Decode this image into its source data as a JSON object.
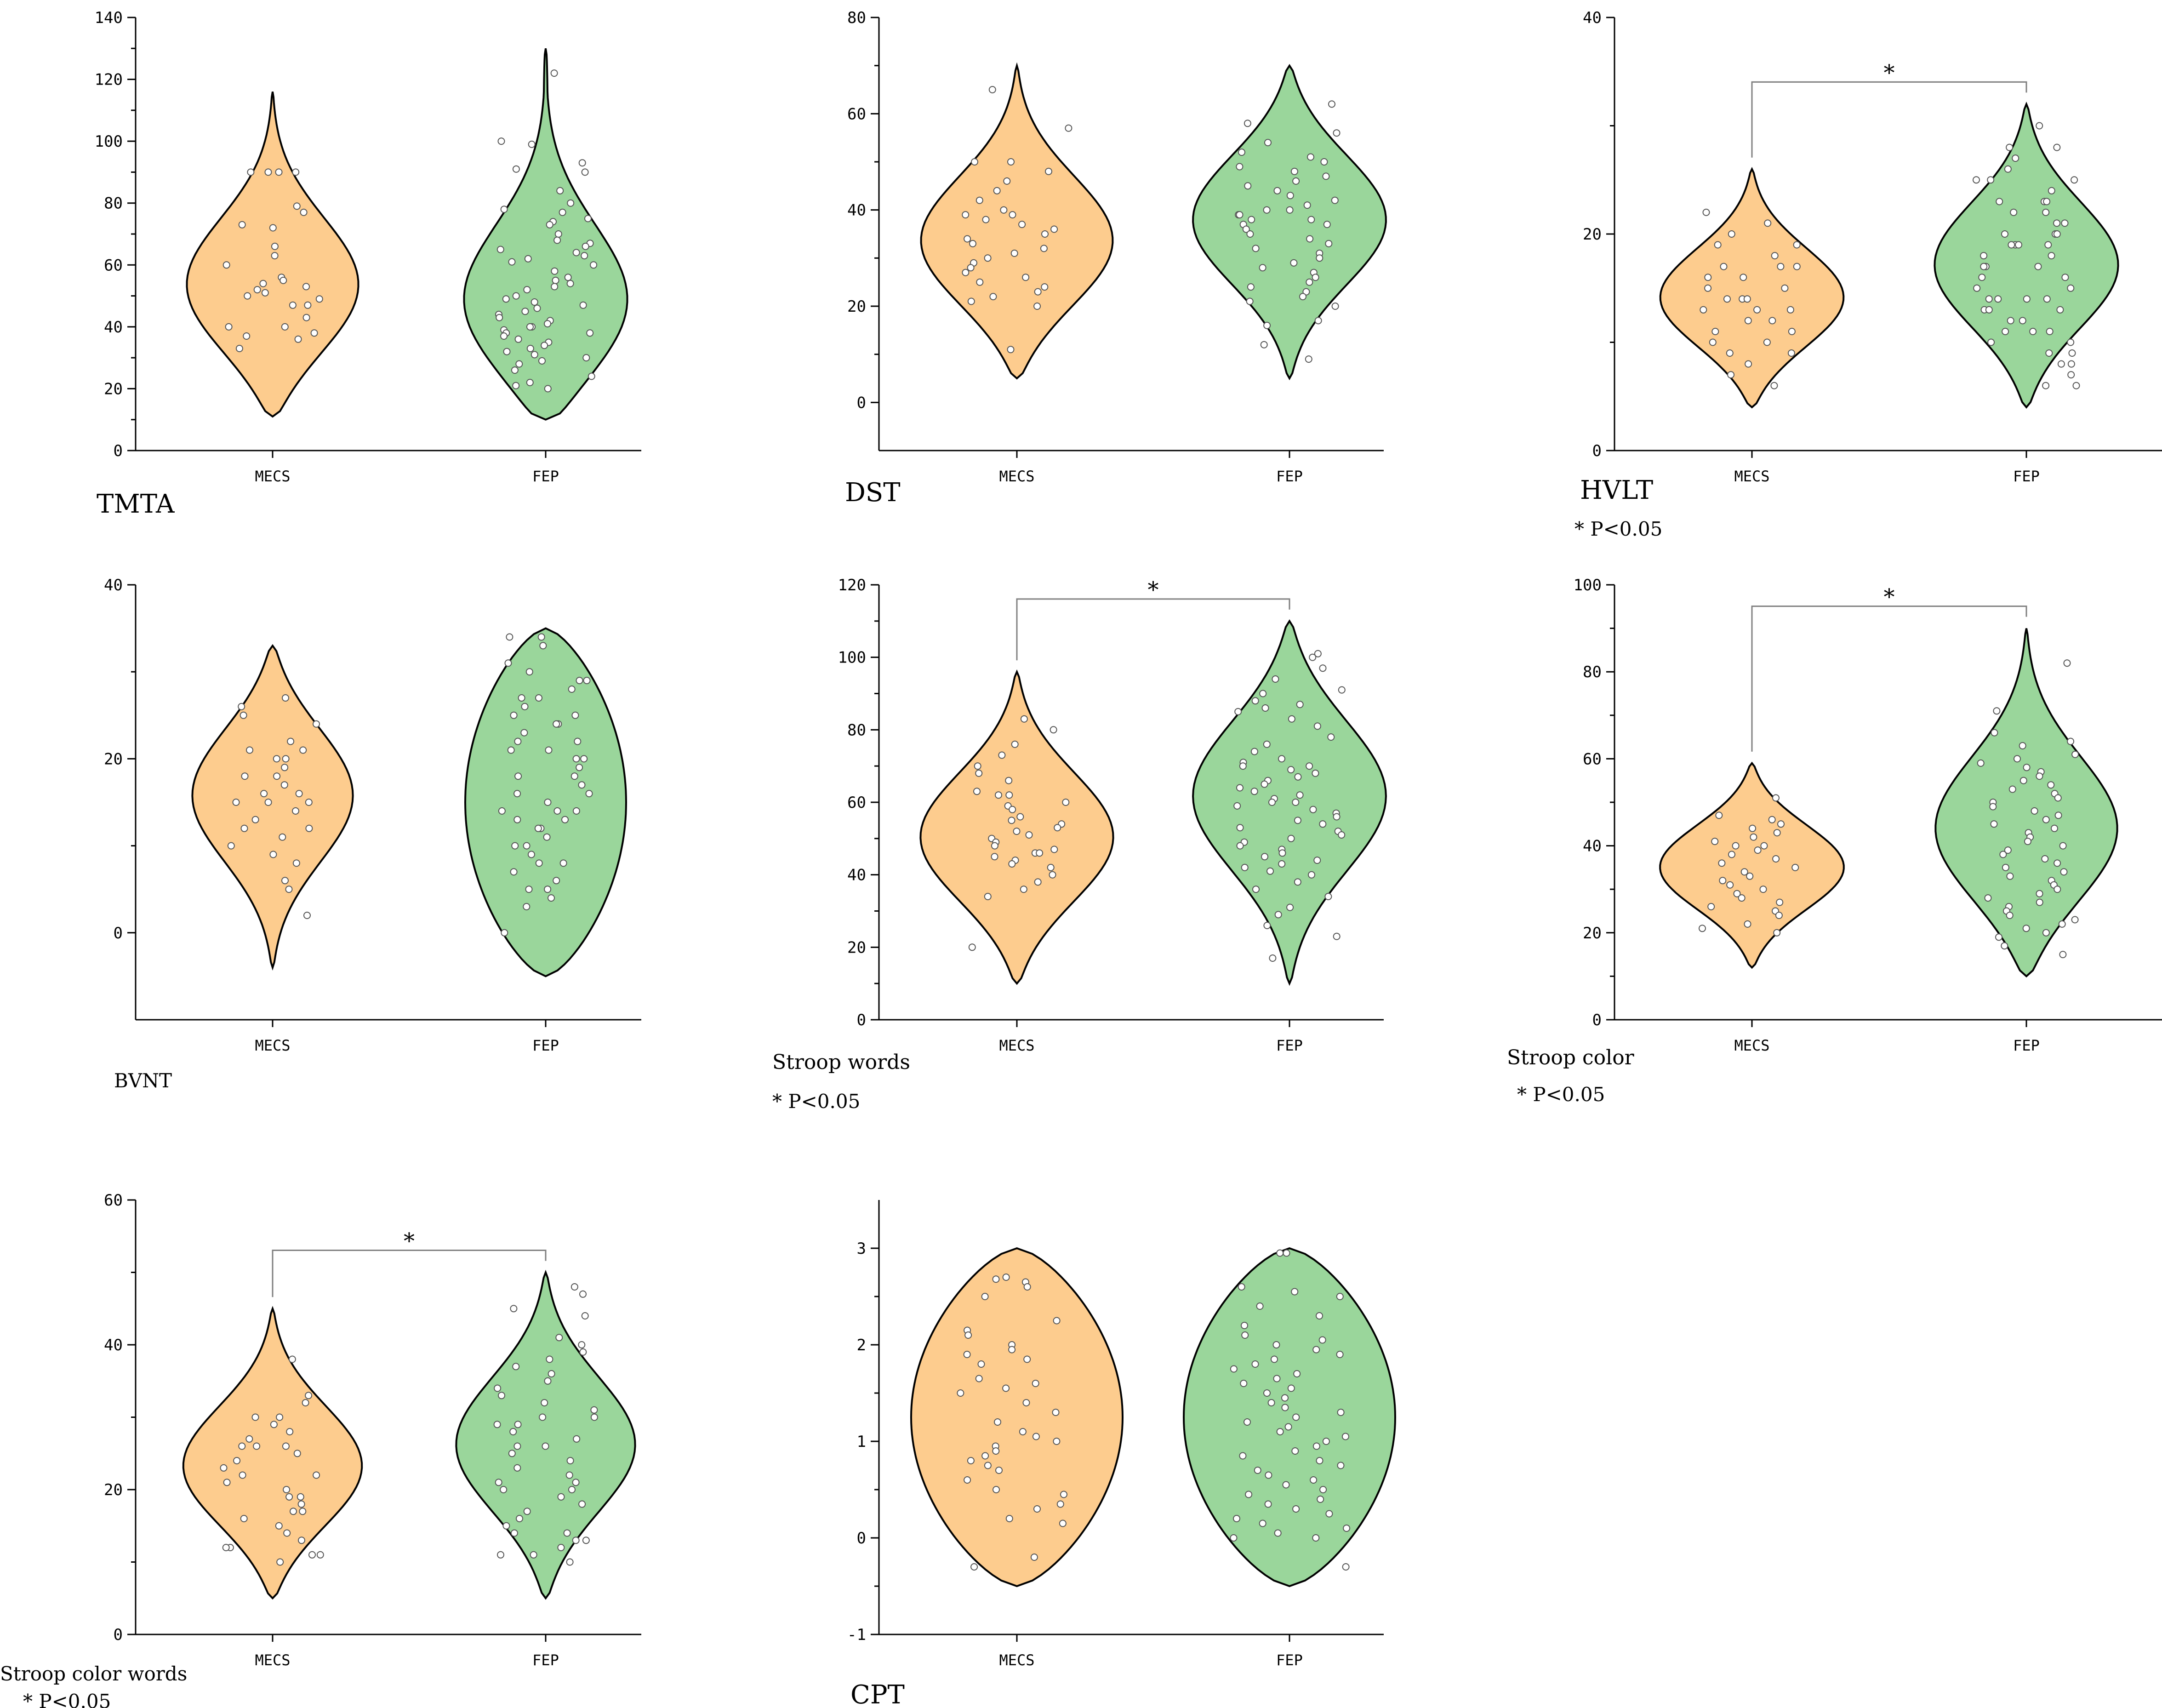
{
  "colors": {
    "mecs": "#FDCC8E",
    "fep": "#9AD69B",
    "outline": "#000000",
    "bracket": "#808080",
    "point_fill": "#ffffff"
  },
  "chart_data": [
    {
      "type": "violin",
      "title": "TMTA",
      "note": "",
      "categories": [
        "MECS",
        "FEP"
      ],
      "ylim": [
        0,
        140
      ],
      "yticks": [
        0,
        20,
        40,
        60,
        80,
        100,
        120,
        140
      ],
      "significant": false,
      "bracket_label": "",
      "series": [
        {
          "category": "MECS",
          "range": [
            11,
            116
          ],
          "median": 52,
          "points": [
            73,
            90,
            90,
            90,
            90,
            77,
            79,
            72,
            66,
            63,
            60,
            56,
            55,
            54,
            53,
            52,
            51,
            50,
            49,
            47,
            47,
            43,
            40,
            40,
            38,
            37,
            36,
            33
          ]
        },
        {
          "category": "FEP",
          "range": [
            10,
            130
          ],
          "median": 45,
          "points": [
            122,
            100,
            99,
            93,
            91,
            90,
            84,
            80,
            78,
            77,
            75,
            74,
            73,
            70,
            68,
            67,
            66,
            65,
            64,
            63,
            62,
            61,
            60,
            58,
            56,
            55,
            54,
            53,
            52,
            50,
            49,
            48,
            47,
            46,
            45,
            44,
            43,
            42,
            41,
            40,
            40,
            39,
            38,
            38,
            37,
            36,
            35,
            34,
            33,
            32,
            31,
            30,
            29,
            28,
            26,
            24,
            22,
            21,
            20
          ]
        }
      ]
    },
    {
      "type": "violin",
      "title": "DST",
      "note": "",
      "categories": [
        "MECS",
        "FEP"
      ],
      "ylim": [
        -10,
        80
      ],
      "yticks": [
        0,
        20,
        40,
        60,
        80
      ],
      "significant": false,
      "bracket_label": "",
      "series": [
        {
          "category": "MECS",
          "range": [
            5,
            70
          ],
          "median": 33,
          "points": [
            65,
            57,
            50,
            50,
            48,
            46,
            44,
            42,
            40,
            39,
            39,
            38,
            37,
            36,
            35,
            34,
            33,
            32,
            31,
            30,
            29,
            28,
            27,
            26,
            25,
            24,
            23,
            22,
            21,
            20,
            11
          ]
        },
        {
          "category": "FEP",
          "range": [
            5,
            70
          ],
          "median": 38,
          "points": [
            62,
            58,
            56,
            54,
            52,
            51,
            50,
            49,
            48,
            47,
            46,
            45,
            44,
            43,
            42,
            41,
            40,
            40,
            39,
            39,
            38,
            38,
            37,
            37,
            36,
            35,
            34,
            33,
            32,
            31,
            30,
            29,
            28,
            27,
            26,
            25,
            24,
            23,
            22,
            21,
            20,
            17,
            16,
            12,
            9
          ]
        }
      ]
    },
    {
      "type": "violin",
      "title": "HVLT",
      "note": "* P<0.05",
      "categories": [
        "MECS",
        "FEP"
      ],
      "ylim": [
        0,
        40
      ],
      "yticks": [
        0,
        20,
        40
      ],
      "significant": true,
      "bracket_label": "*",
      "series": [
        {
          "category": "MECS",
          "range": [
            4,
            26
          ],
          "median": 14,
          "points": [
            22,
            21,
            20,
            19,
            19,
            18,
            17,
            17,
            17,
            16,
            16,
            15,
            15,
            14,
            14,
            14,
            13,
            13,
            13,
            12,
            12,
            11,
            11,
            10,
            10,
            9,
            9,
            8,
            7,
            6
          ]
        },
        {
          "category": "FEP",
          "range": [
            4,
            32
          ],
          "median": 17,
          "points": [
            30,
            28,
            28,
            27,
            26,
            25,
            25,
            25,
            24,
            23,
            23,
            23,
            22,
            22,
            21,
            21,
            20,
            20,
            20,
            19,
            19,
            19,
            19,
            18,
            18,
            17,
            17,
            17,
            16,
            16,
            15,
            15,
            14,
            14,
            14,
            14,
            13,
            13,
            13,
            12,
            12,
            11,
            11,
            11,
            10,
            10,
            9,
            9,
            8,
            8,
            7,
            6,
            6
          ]
        }
      ]
    },
    {
      "type": "violin",
      "title": "BVNT",
      "note": "",
      "categories": [
        "MECS",
        "FEP"
      ],
      "ylim": [
        -10,
        40
      ],
      "yticks": [
        0,
        20,
        40
      ],
      "significant": false,
      "bracket_label": "",
      "series": [
        {
          "category": "MECS",
          "range": [
            -4,
            33
          ],
          "median": 16,
          "points": [
            27,
            26,
            25,
            24,
            22,
            21,
            21,
            20,
            20,
            19,
            18,
            18,
            17,
            16,
            16,
            15,
            15,
            15,
            14,
            13,
            12,
            12,
            11,
            10,
            9,
            8,
            6,
            5,
            2
          ]
        },
        {
          "category": "FEP",
          "range": [
            -5,
            35
          ],
          "median": 16,
          "points": [
            34,
            34,
            33,
            31,
            30,
            29,
            29,
            28,
            27,
            27,
            26,
            25,
            25,
            24,
            24,
            23,
            22,
            22,
            21,
            21,
            20,
            20,
            19,
            18,
            18,
            17,
            16,
            16,
            15,
            14,
            14,
            14,
            13,
            13,
            12,
            12,
            11,
            10,
            10,
            9,
            8,
            8,
            7,
            6,
            5,
            5,
            4,
            3,
            0
          ]
        }
      ]
    },
    {
      "type": "violin",
      "title": "Stroop words",
      "note": "* P<0.05",
      "categories": [
        "MECS",
        "FEP"
      ],
      "ylim": [
        0,
        120
      ],
      "yticks": [
        0,
        20,
        40,
        60,
        80,
        100,
        120
      ],
      "significant": true,
      "bracket_label": "*",
      "series": [
        {
          "category": "MECS",
          "range": [
            10,
            96
          ],
          "median": 50,
          "points": [
            83,
            80,
            76,
            73,
            70,
            68,
            66,
            63,
            62,
            62,
            60,
            59,
            58,
            56,
            55,
            54,
            53,
            52,
            51,
            50,
            49,
            48,
            47,
            46,
            46,
            45,
            44,
            43,
            42,
            40,
            38,
            36,
            34,
            20
          ]
        },
        {
          "category": "FEP",
          "range": [
            10,
            110
          ],
          "median": 62,
          "points": [
            101,
            100,
            97,
            94,
            91,
            90,
            88,
            87,
            86,
            85,
            83,
            81,
            78,
            76,
            74,
            72,
            71,
            70,
            70,
            69,
            68,
            67,
            66,
            65,
            64,
            63,
            62,
            61,
            60,
            60,
            59,
            58,
            57,
            56,
            55,
            54,
            53,
            52,
            51,
            50,
            49,
            48,
            47,
            46,
            45,
            44,
            43,
            42,
            41,
            40,
            38,
            36,
            34,
            31,
            29,
            26,
            23,
            17
          ]
        }
      ]
    },
    {
      "type": "violin",
      "title": "Stroop color",
      "note": "* P<0.05",
      "categories": [
        "MECS",
        "FEP"
      ],
      "ylim": [
        0,
        100
      ],
      "yticks": [
        0,
        20,
        40,
        60,
        80,
        100
      ],
      "significant": true,
      "bracket_label": "*",
      "series": [
        {
          "category": "MECS",
          "range": [
            12,
            59
          ],
          "median": 35,
          "points": [
            51,
            47,
            46,
            45,
            44,
            43,
            42,
            41,
            40,
            40,
            39,
            38,
            37,
            36,
            35,
            34,
            33,
            32,
            31,
            30,
            29,
            28,
            27,
            26,
            25,
            24,
            22,
            21,
            20
          ]
        },
        {
          "category": "FEP",
          "range": [
            10,
            90
          ],
          "median": 43,
          "points": [
            82,
            71,
            66,
            64,
            63,
            61,
            60,
            59,
            58,
            57,
            56,
            55,
            54,
            53,
            52,
            51,
            50,
            49,
            48,
            47,
            46,
            45,
            44,
            43,
            42,
            41,
            40,
            39,
            38,
            37,
            36,
            35,
            34,
            33,
            32,
            31,
            30,
            29,
            28,
            27,
            26,
            25,
            24,
            23,
            22,
            21,
            20,
            19,
            17,
            15
          ]
        }
      ]
    },
    {
      "type": "violin",
      "title": "Stroop color words",
      "note": "* P<0.05",
      "categories": [
        "MECS",
        "FEP"
      ],
      "ylim": [
        0,
        60
      ],
      "yticks": [
        0,
        20,
        40,
        60
      ],
      "significant": true,
      "bracket_label": "*",
      "series": [
        {
          "category": "MECS",
          "range": [
            5,
            45
          ],
          "median": 23,
          "points": [
            38,
            33,
            32,
            30,
            30,
            29,
            28,
            27,
            26,
            26,
            26,
            25,
            24,
            23,
            22,
            22,
            21,
            20,
            19,
            19,
            18,
            17,
            17,
            16,
            15,
            14,
            13,
            12,
            12,
            11,
            11,
            10
          ]
        },
        {
          "category": "FEP",
          "range": [
            5,
            50
          ],
          "median": 26,
          "points": [
            48,
            47,
            45,
            44,
            41,
            40,
            39,
            38,
            37,
            36,
            35,
            34,
            33,
            32,
            31,
            30,
            30,
            29,
            29,
            28,
            27,
            26,
            26,
            25,
            24,
            23,
            22,
            21,
            21,
            20,
            20,
            19,
            18,
            17,
            16,
            15,
            14,
            14,
            13,
            13,
            12,
            11,
            11,
            10
          ]
        }
      ]
    },
    {
      "type": "violin",
      "title": "CPT",
      "note": "",
      "categories": [
        "MECS",
        "FEP"
      ],
      "ylim": [
        -1,
        3.5
      ],
      "yticks": [
        -1,
        0,
        1,
        2,
        3
      ],
      "significant": false,
      "bracket_label": "",
      "series": [
        {
          "category": "MECS",
          "range": [
            -0.5,
            3
          ],
          "median": 1.1,
          "points": [
            2.7,
            2.68,
            2.65,
            2.6,
            2.5,
            2.25,
            2.15,
            2.1,
            2.0,
            1.95,
            1.9,
            1.85,
            1.8,
            1.65,
            1.6,
            1.55,
            1.5,
            1.4,
            1.3,
            1.2,
            1.1,
            1.05,
            1.0,
            0.95,
            0.9,
            0.85,
            0.8,
            0.75,
            0.7,
            0.6,
            0.5,
            0.45,
            0.35,
            0.3,
            0.2,
            0.15,
            -0.2,
            -0.3
          ]
        },
        {
          "category": "FEP",
          "range": [
            -0.5,
            3
          ],
          "median": 1.3,
          "points": [
            2.95,
            2.95,
            2.6,
            2.55,
            2.5,
            2.4,
            2.3,
            2.2,
            2.1,
            2.05,
            2.0,
            1.95,
            1.9,
            1.85,
            1.8,
            1.75,
            1.7,
            1.65,
            1.6,
            1.55,
            1.5,
            1.45,
            1.4,
            1.35,
            1.3,
            1.25,
            1.2,
            1.15,
            1.1,
            1.05,
            1.0,
            0.95,
            0.9,
            0.85,
            0.8,
            0.75,
            0.7,
            0.65,
            0.6,
            0.55,
            0.5,
            0.45,
            0.4,
            0.35,
            0.3,
            0.25,
            0.2,
            0.15,
            0.1,
            0.05,
            0.0,
            0.0,
            -0.3
          ]
        }
      ]
    }
  ]
}
